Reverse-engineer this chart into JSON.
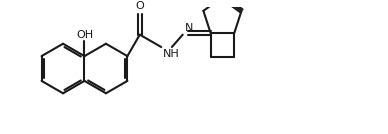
{
  "bg_color": "#ffffff",
  "line_color": "#1a1a1a",
  "lw": 1.5,
  "fs": 8.0,
  "figsize": [
    3.88,
    1.34
  ],
  "dpi": 100,
  "xlim": [
    0.0,
    10.5
  ],
  "ylim": [
    0.2,
    3.8
  ]
}
